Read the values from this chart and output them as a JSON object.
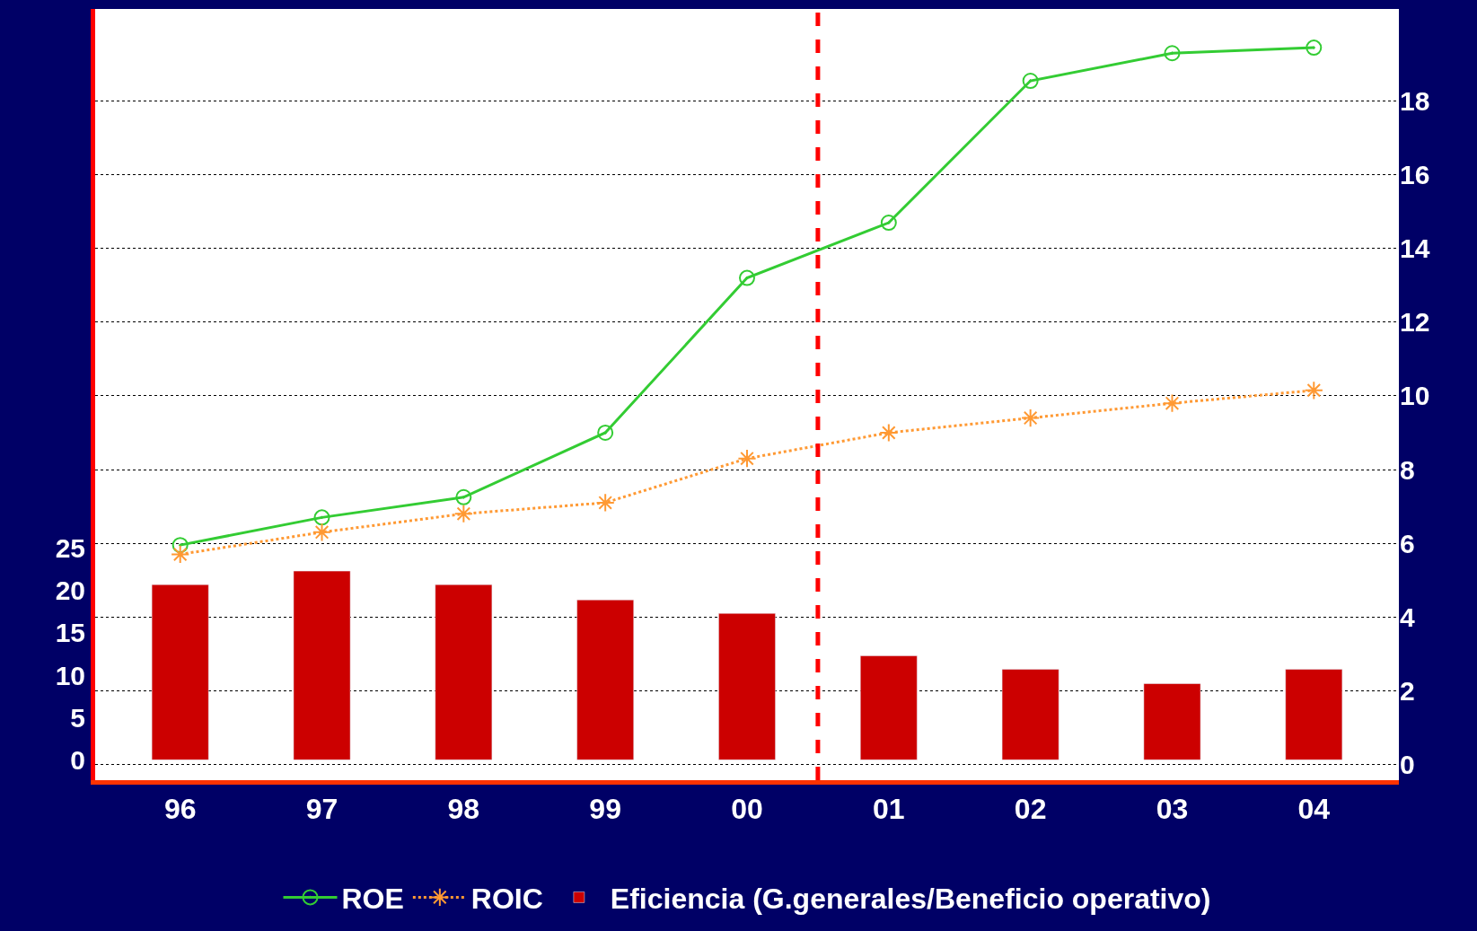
{
  "chart_data": {
    "type": "bar",
    "x": [
      1996,
      1997,
      1998,
      1999,
      2000,
      2001,
      2002,
      2003,
      2004
    ],
    "xlim": [
      1995.4,
      2004.6
    ],
    "xticks": [
      {
        "value": 1996,
        "label": "96"
      },
      {
        "value": 1997,
        "label": "97"
      },
      {
        "value": 1998,
        "label": "98"
      },
      {
        "value": 1999,
        "label": "99"
      },
      {
        "value": 2000,
        "label": "00"
      },
      {
        "value": 2001,
        "label": "01"
      },
      {
        "value": 2002,
        "label": "02"
      },
      {
        "value": 2003,
        "label": "03"
      },
      {
        "value": 2004,
        "label": "04"
      }
    ],
    "series": [
      {
        "name": "ROE",
        "type": "line",
        "axis": "y2",
        "color": "#33cc33",
        "marker": "circle",
        "line_style": "solid",
        "values": [
          5.95,
          6.7,
          7.25,
          9.0,
          13.2,
          14.7,
          18.55,
          19.3,
          19.45
        ]
      },
      {
        "name": "ROIC",
        "type": "line",
        "axis": "y2",
        "color": "#ff9933",
        "marker": "cross",
        "line_style": "dotted",
        "values": [
          5.7,
          6.3,
          6.8,
          7.1,
          8.3,
          9.0,
          9.4,
          9.8,
          10.15
        ]
      },
      {
        "name": "Eficiencia (G.generales/Beneficio operativo)",
        "color": "#cc0000",
        "values": [
          20.7,
          22.3,
          20.7,
          18.9,
          17.3,
          12.3,
          10.7,
          9.0,
          10.7
        ]
      }
    ],
    "ylim": [
      -2.4,
      88.7
    ],
    "yticks": [
      0,
      5,
      10,
      15,
      20,
      25
    ],
    "y2lim": [
      -0.43,
      20.5
    ],
    "y2ticks": [
      0,
      2,
      4,
      6,
      8,
      10,
      12,
      14,
      16,
      18
    ],
    "ref_lines": [
      {
        "axis": "x",
        "value": 2000.5,
        "color": "#ff0000",
        "line_style": "dashed"
      }
    ],
    "grid": "y",
    "legend": "bottom"
  }
}
